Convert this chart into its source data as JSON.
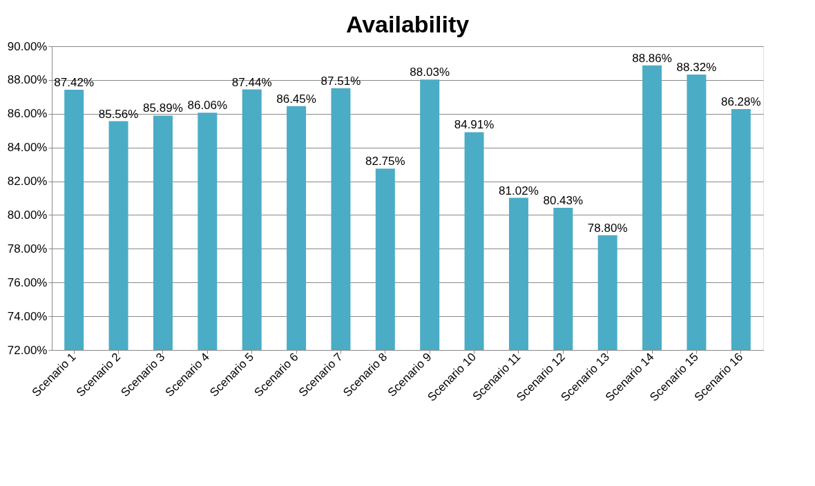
{
  "chart_data": {
    "type": "bar",
    "title": "Availability",
    "categories": [
      "Scenario 1",
      "Scenario 2",
      "Scenario 3",
      "Scenario 4",
      "Scenario 5",
      "Scenario 6",
      "Scenario 7",
      "Scenario 8",
      "Scenario 9",
      "Scenario 10",
      "Scenario 11",
      "Scenario 12",
      "Scenario 13",
      "Scenario 14",
      "Scenario 15",
      "Scenario 16"
    ],
    "values": [
      87.42,
      85.56,
      85.89,
      86.06,
      87.44,
      86.45,
      87.51,
      82.75,
      88.03,
      84.91,
      81.02,
      80.43,
      78.8,
      88.86,
      88.32,
      86.28
    ],
    "color": "#4bacc6",
    "ylim": [
      72,
      90
    ],
    "yticks": [
      {
        "value": 72,
        "label": "72.00%"
      },
      {
        "value": 74,
        "label": "74.00%"
      },
      {
        "value": 76,
        "label": "76.00%"
      },
      {
        "value": 78,
        "label": "78.00%"
      },
      {
        "value": 80,
        "label": "80.00%"
      },
      {
        "value": 82,
        "label": "82.00%"
      },
      {
        "value": 84,
        "label": "84.00%"
      },
      {
        "value": 86,
        "label": "86.00%"
      },
      {
        "value": 88,
        "label": "88.00%"
      },
      {
        "value": 90,
        "label": "90.00%"
      }
    ],
    "value_labels": [
      "87.42%",
      "85.56%",
      "85.89%",
      "86.06%",
      "87.44%",
      "86.45%",
      "87.51%",
      "82.75%",
      "88.03%",
      "84.91%",
      "81.02%",
      "80.43%",
      "78.80%",
      "88.86%",
      "88.32%",
      "86.28%"
    ],
    "grid": "y"
  }
}
